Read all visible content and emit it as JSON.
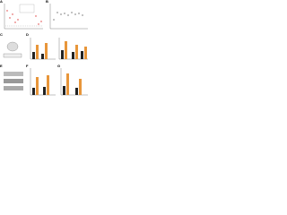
{
  "figure": {
    "panels": [
      {
        "label": "A"
      },
      {
        "label": "B"
      },
      {
        "label": "C"
      },
      {
        "label": "D"
      },
      {
        "label": "E"
      },
      {
        "label": "F"
      },
      {
        "label": "G"
      }
    ]
  }
}
